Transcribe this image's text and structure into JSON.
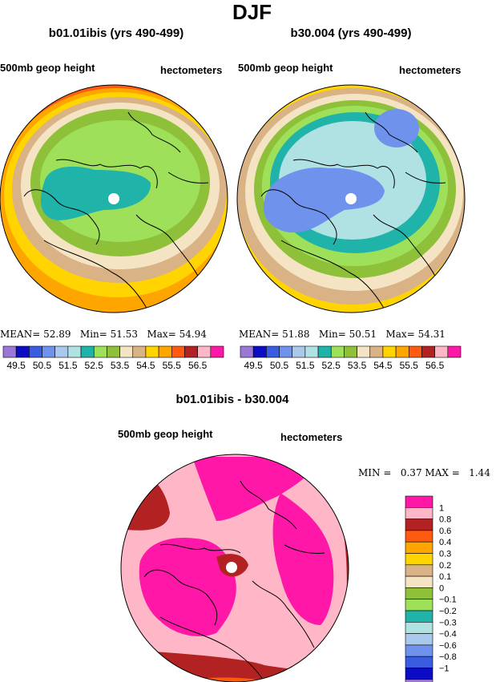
{
  "figure_title": "DJF",
  "panels": {
    "left": {
      "title": "b01.01ibis (yrs 490-499)",
      "variable": "500mb geop height",
      "units": "hectometers",
      "stats": {
        "mean_label": "MEAN=",
        "mean": "52.89",
        "min_label": "Min=",
        "min": "51.53",
        "max_label": "Max=",
        "max": "54.94"
      }
    },
    "right": {
      "title": "b30.004 (yrs 490-499)",
      "variable": "500mb geop height",
      "units": "hectometers",
      "stats": {
        "mean_label": "MEAN=",
        "mean": "51.88",
        "min_label": "Min=",
        "min": "50.51",
        "max_label": "Max=",
        "max": "54.31"
      }
    },
    "diff": {
      "title": "b01.01ibis - b30.004",
      "variable": "500mb geop height",
      "units": "hectometers",
      "stats": {
        "min_label": "MIN =",
        "min": "0.37",
        "max_label": "MAX =",
        "max": "1.44"
      }
    }
  },
  "chart_data": [
    {
      "type": "heatmap",
      "title": "b01.01ibis (yrs 490-499)",
      "subtitle": "500mb geop height",
      "units": "hectometers",
      "projection": "polar stereographic (north)",
      "levels": [
        49.5,
        50.0,
        50.5,
        51.0,
        51.5,
        52.0,
        52.5,
        53.0,
        53.5,
        54.0,
        54.5,
        55.0,
        55.5,
        56.0,
        56.5
      ],
      "colorbar_labels": [
        "49.5",
        "50.5",
        "51.5",
        "52.5",
        "53.5",
        "54.5",
        "55.5",
        "56.5"
      ],
      "bands_pole_to_edge": [
        51.75,
        52.25,
        52.75,
        53.25,
        53.75,
        54.25,
        54.75
      ],
      "mean": 52.89,
      "min": 51.53,
      "max": 54.94
    },
    {
      "type": "heatmap",
      "title": "b30.004 (yrs 490-499)",
      "subtitle": "500mb geop height",
      "units": "hectometers",
      "projection": "polar stereographic (north)",
      "levels": [
        49.5,
        50.0,
        50.5,
        51.0,
        51.5,
        52.0,
        52.5,
        53.0,
        53.5,
        54.0,
        54.5,
        55.0,
        55.5,
        56.0,
        56.5
      ],
      "colorbar_labels": [
        "49.5",
        "50.5",
        "51.5",
        "52.5",
        "53.5",
        "54.5",
        "55.5",
        "56.5"
      ],
      "bands_pole_to_edge": [
        50.75,
        51.25,
        51.75,
        52.25,
        52.75,
        53.25,
        53.75,
        54.25
      ],
      "mean": 51.88,
      "min": 50.51,
      "max": 54.31
    },
    {
      "type": "heatmap",
      "title": "b01.01ibis - b30.004",
      "subtitle": "500mb geop height",
      "units": "hectometers",
      "projection": "polar stereographic (north)",
      "levels": [
        -1,
        -0.8,
        -0.6,
        -0.4,
        -0.3,
        -0.2,
        -0.1,
        0,
        0.1,
        0.2,
        0.3,
        0.4,
        0.6,
        0.8,
        1
      ],
      "colorbar_labels": [
        "1",
        "0.8",
        "0.6",
        "0.4",
        "0.3",
        "0.2",
        "0.1",
        "0",
        "−0.1",
        "−0.2",
        "−0.3",
        "−0.4",
        "−0.6",
        "−0.8",
        "−1"
      ],
      "bands_pole_to_edge": [
        1.2,
        0.9,
        1.2,
        0.9
      ],
      "min": 0.37,
      "max": 1.44
    }
  ],
  "colors": {
    "abs_fills": [
      "#9b78d6",
      "#0c0cc4",
      "#3a5ce0",
      "#6f92ec",
      "#a8c8ec",
      "#b0e2e4",
      "#1fb3aa",
      "#9ee05a",
      "#8ec03a",
      "#f4e4c4",
      "#d9b285",
      "#ffd400",
      "#ffa500",
      "#ff5b10",
      "#b22222",
      "#ffb6c6",
      "#ff18a8"
    ],
    "diff_fills": [
      "#ff18a8",
      "#ffb6c6",
      "#b22222",
      "#ff5b10",
      "#ffa500",
      "#ffd400",
      "#d9b285",
      "#f4e4c4",
      "#8ec03a",
      "#9ee05a",
      "#1fb3aa",
      "#b0e2e4",
      "#a8c8ec",
      "#6f92ec",
      "#3a5ce0",
      "#0c0cc4",
      "#9b78d6"
    ]
  }
}
